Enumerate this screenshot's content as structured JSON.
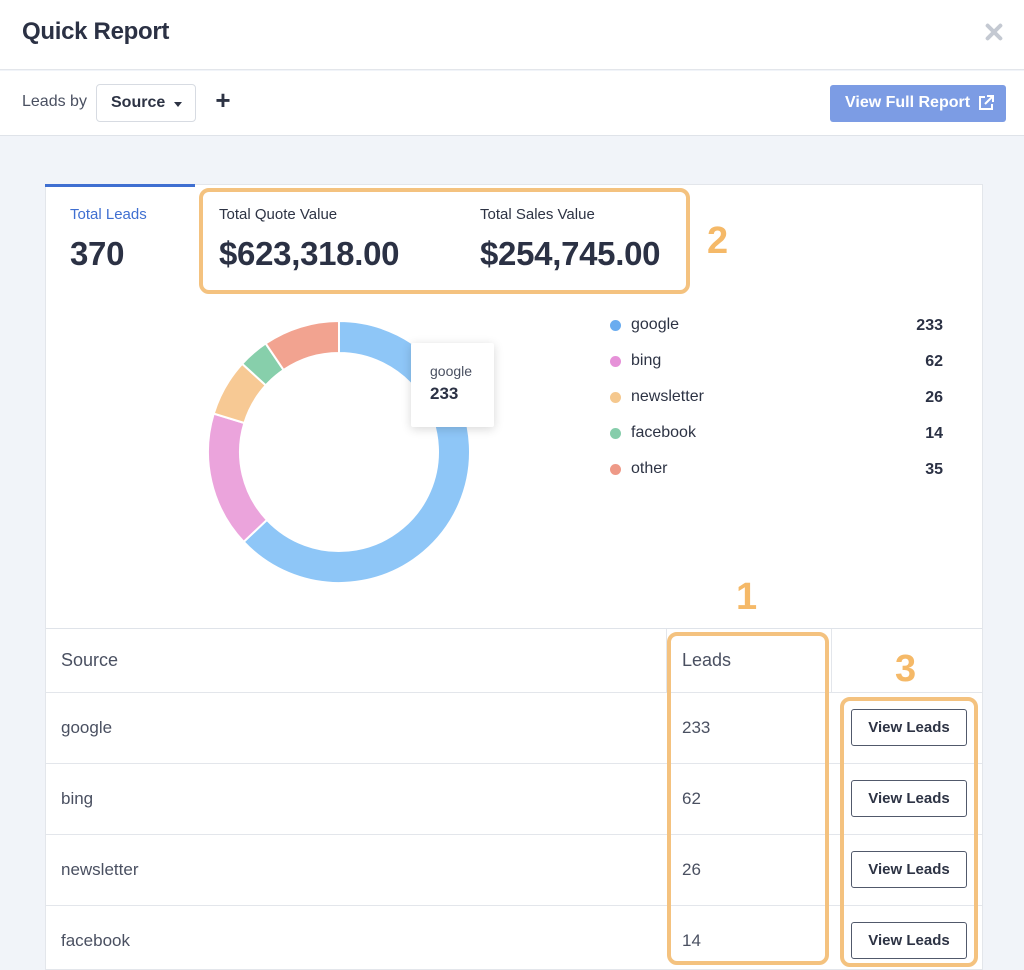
{
  "header": {
    "title": "Quick Report"
  },
  "toolbar": {
    "leads_by_label": "Leads by",
    "group_select_value": "Source",
    "add_label": "+",
    "full_report_label": "View Full Report"
  },
  "metrics": {
    "total_leads": {
      "label": "Total Leads",
      "value": "370"
    },
    "total_quote": {
      "label": "Total Quote Value",
      "value": "$623,318.00"
    },
    "total_sales": {
      "label": "Total Sales Value",
      "value": "$254,745.00"
    }
  },
  "chart_data": {
    "type": "pie",
    "donut": true,
    "categories": [
      "google",
      "bing",
      "newsletter",
      "facebook",
      "other"
    ],
    "values": [
      233,
      62,
      26,
      14,
      35
    ],
    "colors": [
      "#8ec6f7",
      "#eba4dc",
      "#f7c994",
      "#87cfab",
      "#f2a390"
    ],
    "tooltip": {
      "name": "google",
      "value": "233"
    }
  },
  "legend": [
    {
      "name": "google",
      "count": "233",
      "color": "#6aacef"
    },
    {
      "name": "bing",
      "count": "62",
      "color": "#e691d8"
    },
    {
      "name": "newsletter",
      "count": "26",
      "color": "#f5c88e"
    },
    {
      "name": "facebook",
      "count": "14",
      "color": "#86cdab"
    },
    {
      "name": "other",
      "count": "35",
      "color": "#ee9987"
    }
  ],
  "table": {
    "headers": {
      "source": "Source",
      "leads": "Leads"
    },
    "rows": [
      {
        "source": "google",
        "leads": "233",
        "action": "View Leads"
      },
      {
        "source": "bing",
        "leads": "62",
        "action": "View Leads"
      },
      {
        "source": "newsletter",
        "leads": "26",
        "action": "View Leads"
      },
      {
        "source": "facebook",
        "leads": "14",
        "action": "View Leads"
      }
    ]
  },
  "annotations": {
    "one": "1",
    "two": "2",
    "three": "3"
  },
  "colors": {
    "accent": "#3f6fd1",
    "button": "#7c9ce4",
    "highlight": "#f4c27f"
  }
}
